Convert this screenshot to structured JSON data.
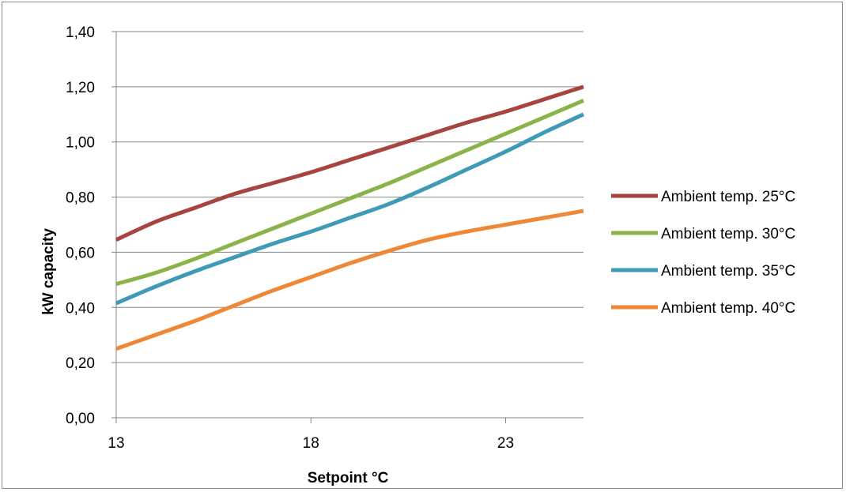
{
  "chart_data": {
    "type": "line",
    "title": "",
    "xlabel": "Setpoint °C",
    "ylabel": "kW capacity",
    "xlim": [
      13,
      25
    ],
    "ylim": [
      0,
      1.4
    ],
    "x_ticks": [
      13,
      18,
      23
    ],
    "x_tick_labels": [
      "13",
      "18",
      "23"
    ],
    "y_ticks": [
      0,
      0.2,
      0.4,
      0.6,
      0.8,
      1.0,
      1.2,
      1.4
    ],
    "y_tick_labels": [
      "0,00",
      "0,20",
      "0,40",
      "0,60",
      "0,80",
      "1,00",
      "1,20",
      "1,40"
    ],
    "grid": "horizontal",
    "legend_position": "right",
    "series": [
      {
        "name": "Ambient temp. 25°C",
        "color": "#a84440",
        "x": [
          13,
          14,
          15,
          16,
          17,
          18,
          19,
          20,
          21,
          22,
          23,
          24,
          25
        ],
        "values": [
          0.645,
          0.71,
          0.76,
          0.81,
          0.85,
          0.89,
          0.935,
          0.98,
          1.025,
          1.07,
          1.11,
          1.155,
          1.2
        ]
      },
      {
        "name": "Ambient temp. 30°C",
        "color": "#8cb34a",
        "x": [
          13,
          14,
          15,
          16,
          17,
          18,
          19,
          20,
          21,
          22,
          23,
          24,
          25
        ],
        "values": [
          0.485,
          0.525,
          0.575,
          0.63,
          0.685,
          0.74,
          0.795,
          0.85,
          0.91,
          0.97,
          1.03,
          1.09,
          1.15
        ]
      },
      {
        "name": "Ambient temp. 35°C",
        "color": "#3f9bb5",
        "x": [
          13,
          14,
          15,
          16,
          17,
          18,
          19,
          20,
          21,
          22,
          23,
          24,
          25
        ],
        "values": [
          0.415,
          0.475,
          0.53,
          0.58,
          0.63,
          0.675,
          0.725,
          0.775,
          0.835,
          0.9,
          0.965,
          1.035,
          1.1
        ]
      },
      {
        "name": "Ambient temp. 40°C",
        "color": "#ee8736",
        "x": [
          13,
          14,
          15,
          16,
          17,
          18,
          19,
          20,
          21,
          22,
          23,
          24,
          25
        ],
        "values": [
          0.25,
          0.3,
          0.35,
          0.405,
          0.46,
          0.51,
          0.56,
          0.605,
          0.645,
          0.675,
          0.7,
          0.725,
          0.75
        ]
      }
    ]
  }
}
